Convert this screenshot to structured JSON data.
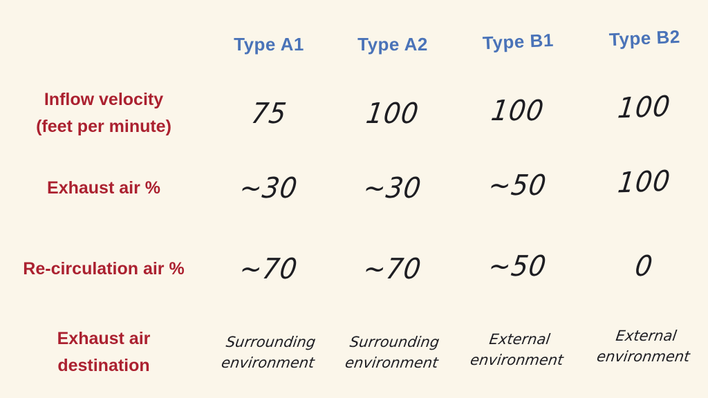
{
  "colors": {
    "background": "#fbf6ea",
    "header_blue": "#4a73b8",
    "label_red": "#ab2130",
    "value_ink": "#1d1d22"
  },
  "chart_data": {
    "type": "table",
    "columns": [
      "Type A1",
      "Type A2",
      "Type B1",
      "Type B2"
    ],
    "rows": [
      {
        "label": "Inflow velocity (feet per minute)",
        "label_lines": [
          "Inflow velocity",
          "(feet per minute)"
        ],
        "values": [
          "75",
          "100",
          "100",
          "100"
        ]
      },
      {
        "label": "Exhaust air %",
        "label_lines": [
          "Exhaust air %"
        ],
        "values": [
          "~30",
          "~30",
          "~50",
          "100"
        ]
      },
      {
        "label": "Re-circulation air %",
        "label_lines": [
          "Re-circulation air %"
        ],
        "values": [
          "~70",
          "~70",
          "~50",
          "0"
        ]
      },
      {
        "label": "Exhaust air destination",
        "label_lines": [
          "Exhaust air",
          "destination"
        ],
        "values": [
          "Surrounding environment",
          "Surrounding environment",
          "External environment",
          "External environment"
        ]
      }
    ]
  }
}
